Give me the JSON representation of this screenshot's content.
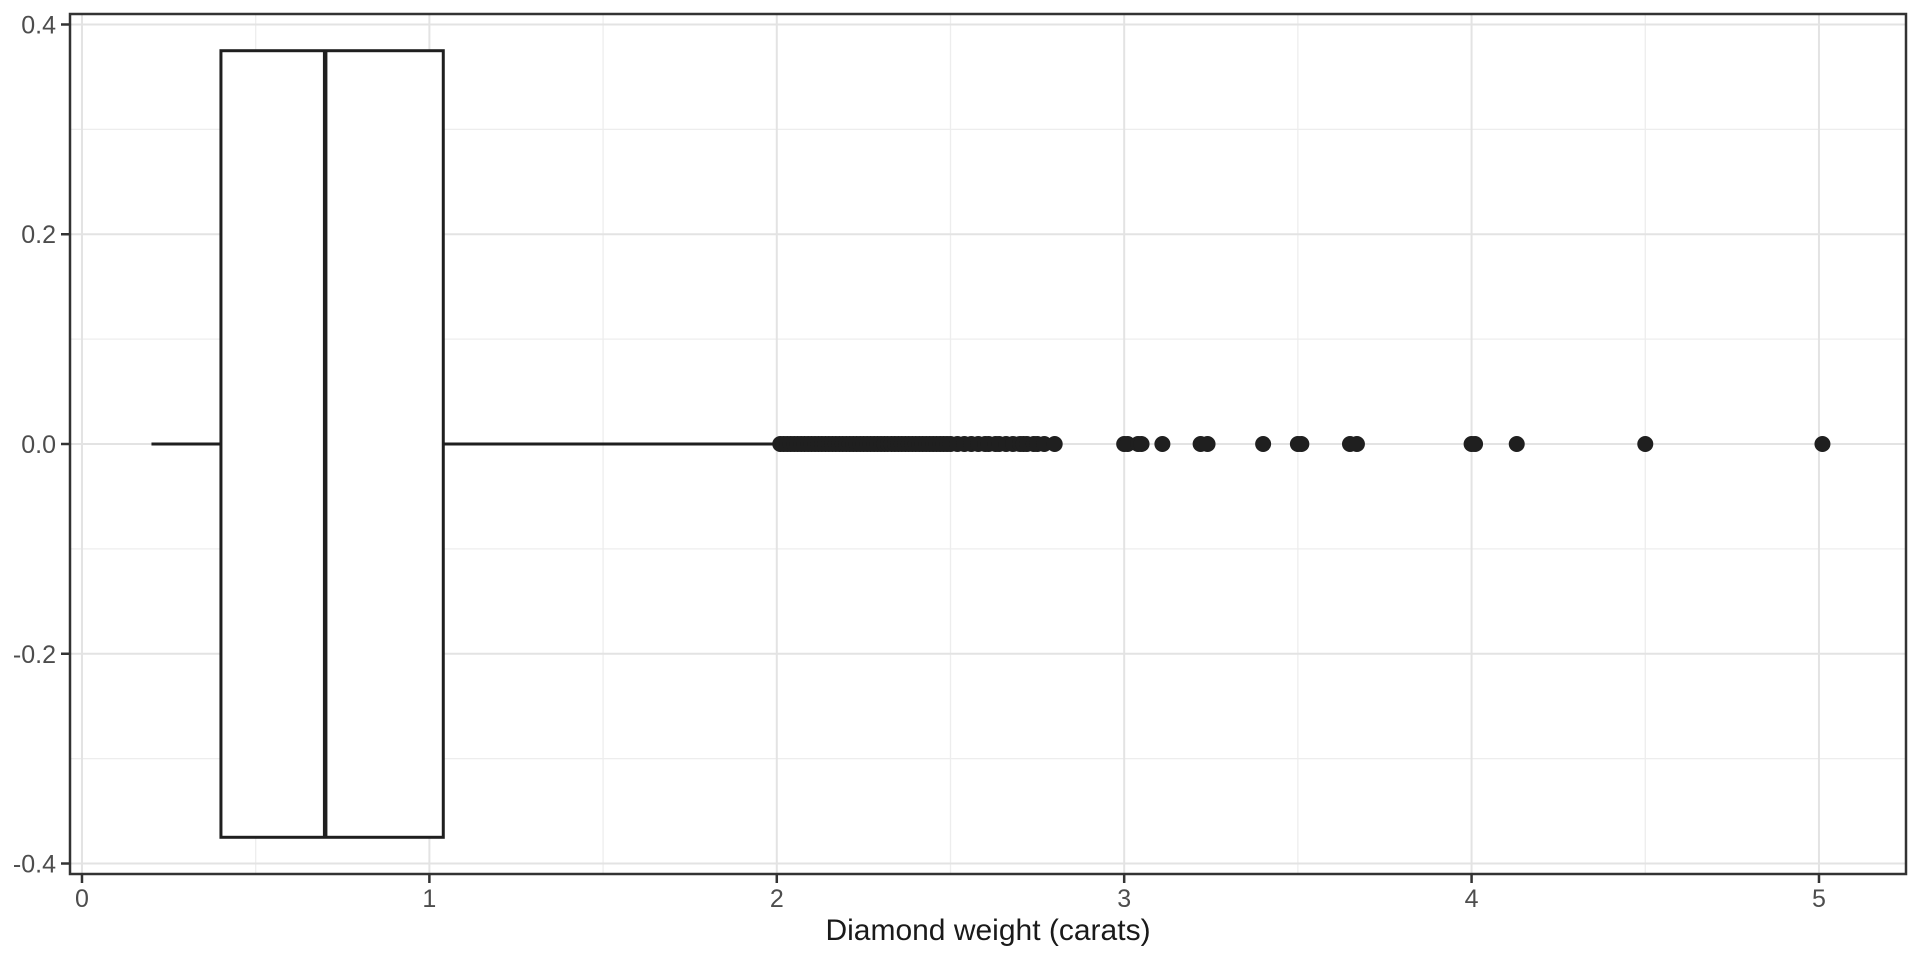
{
  "figure": {
    "background": "#ffffff"
  },
  "chart_data": {
    "type": "boxplot",
    "orientation": "horizontal",
    "title": "",
    "xlabel": "Diamond weight (carats)",
    "ylabel": "",
    "grid": true,
    "legend": false,
    "box": {
      "whisker_min": 0.2,
      "q1": 0.4,
      "median": 0.7,
      "q3": 1.04,
      "whisker_max": 2.0,
      "center_y": 0,
      "box_half_height": 0.375
    },
    "outliers": [
      2.01,
      2.02,
      2.03,
      2.04,
      2.05,
      2.06,
      2.07,
      2.08,
      2.09,
      2.1,
      2.11,
      2.12,
      2.13,
      2.14,
      2.15,
      2.16,
      2.17,
      2.18,
      2.19,
      2.2,
      2.21,
      2.22,
      2.23,
      2.24,
      2.25,
      2.26,
      2.27,
      2.28,
      2.29,
      2.3,
      2.31,
      2.32,
      2.33,
      2.34,
      2.35,
      2.36,
      2.37,
      2.38,
      2.39,
      2.4,
      2.41,
      2.42,
      2.43,
      2.44,
      2.45,
      2.46,
      2.47,
      2.48,
      2.49,
      2.5,
      2.52,
      2.54,
      2.56,
      2.58,
      2.6,
      2.61,
      2.63,
      2.64,
      2.66,
      2.68,
      2.7,
      2.71,
      2.72,
      2.74,
      2.75,
      2.77,
      2.8,
      3.0,
      3.01,
      3.04,
      3.05,
      3.11,
      3.22,
      3.24,
      3.4,
      3.5,
      3.51,
      3.65,
      3.67,
      4.0,
      4.01,
      4.13,
      4.5,
      5.01
    ],
    "x_axis": {
      "ticks": [
        0,
        1,
        2,
        3,
        4,
        5
      ],
      "tick_labels": [
        "0",
        "1",
        "2",
        "3",
        "4",
        "5"
      ],
      "minor_ticks": [
        0.5,
        1.5,
        2.5,
        3.5,
        4.5
      ],
      "domain": [
        -0.0345,
        5.2505
      ]
    },
    "y_axis": {
      "ticks": [
        0.4,
        0.2,
        0.0,
        -0.2,
        -0.4
      ],
      "tick_labels": [
        "0.4",
        "0.2",
        "0.0",
        "-0.2",
        "-0.4"
      ],
      "minor_ticks": [
        0.3,
        0.1,
        -0.1,
        -0.3
      ],
      "domain": [
        -0.41,
        0.41
      ]
    },
    "colors": {
      "stroke": "#1f1f1f",
      "point": "#1f1f1f",
      "box_fill": "#ffffff",
      "grid_major": "#e3e3e3",
      "grid_minor": "#ededed",
      "panel_border": "#333333",
      "tick_mark": "#333333",
      "axis_text": "#4d4d4d",
      "title_text": "#1a1a1a",
      "background": "#ffffff"
    }
  }
}
